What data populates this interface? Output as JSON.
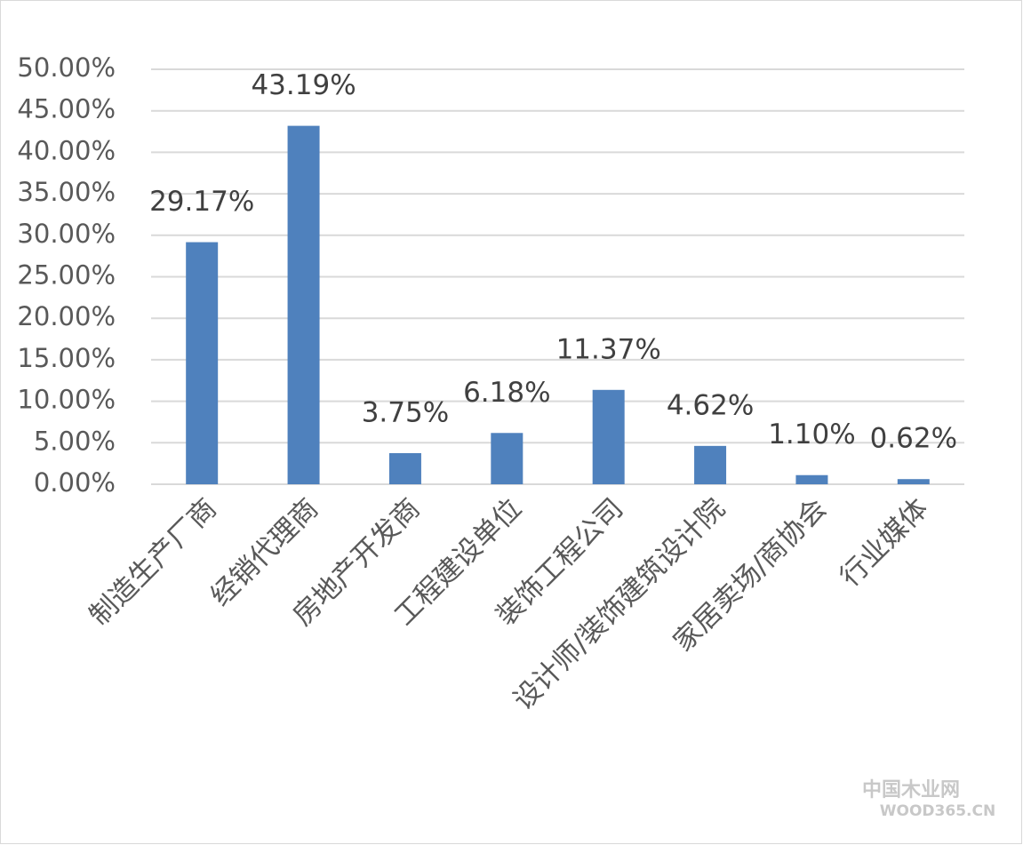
{
  "chart_data": {
    "type": "bar",
    "categories": [
      "制造生产厂商",
      "经销代理商",
      "房地产开发商",
      "工程建设单位",
      "装饰工程公司",
      "设计师/装饰建筑设计院",
      "家居卖场/商协会",
      "行业媒体"
    ],
    "values": [
      29.17,
      43.19,
      3.75,
      6.18,
      11.37,
      4.62,
      1.1,
      0.62
    ],
    "value_labels": [
      "29.17%",
      "43.19%",
      "3.75%",
      "6.18%",
      "11.37%",
      "4.62%",
      "1.10%",
      "0.62%"
    ],
    "color": "#4f81bd",
    "ylim": [
      0,
      50
    ],
    "yticks": [
      {
        "value": 0,
        "label": "0.00%"
      },
      {
        "value": 5,
        "label": "5.00%"
      },
      {
        "value": 10,
        "label": "10.00%"
      },
      {
        "value": 15,
        "label": "15.00%"
      },
      {
        "value": 20,
        "label": "20.00%"
      },
      {
        "value": 25,
        "label": "25.00%"
      },
      {
        "value": 30,
        "label": "30.00%"
      },
      {
        "value": 35,
        "label": "35.00%"
      },
      {
        "value": 40,
        "label": "40.00%"
      },
      {
        "value": 45,
        "label": "45.00%"
      },
      {
        "value": 50,
        "label": "50.00%"
      }
    ],
    "grid": true
  },
  "watermark": {
    "title": "中国木业网",
    "subtitle": "WOOD365.CN"
  }
}
